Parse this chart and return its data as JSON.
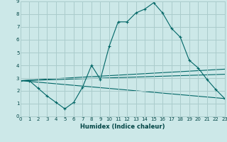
{
  "xlabel": "Humidex (Indice chaleur)",
  "bg_color": "#cce8e8",
  "grid_color": "#aacccc",
  "line_color": "#006666",
  "xlim": [
    0,
    23
  ],
  "ylim": [
    0,
    9
  ],
  "xticks": [
    0,
    1,
    2,
    3,
    4,
    5,
    6,
    7,
    8,
    9,
    10,
    11,
    12,
    13,
    14,
    15,
    16,
    17,
    18,
    19,
    20,
    21,
    22,
    23
  ],
  "yticks": [
    0,
    1,
    2,
    3,
    4,
    5,
    6,
    7,
    8,
    9
  ],
  "line1_x": [
    0,
    1,
    2,
    3,
    4,
    5,
    6,
    7,
    8,
    9,
    10,
    11,
    12,
    13,
    14,
    15,
    16,
    17,
    18,
    19,
    20,
    21,
    22,
    23
  ],
  "line1_y": [
    2.8,
    2.8,
    2.2,
    1.6,
    1.1,
    0.6,
    1.1,
    2.3,
    4.0,
    2.9,
    5.5,
    7.4,
    7.4,
    8.1,
    8.4,
    8.9,
    8.1,
    6.9,
    6.2,
    4.4,
    3.8,
    2.9,
    2.1,
    1.4
  ],
  "line2_x": [
    0,
    23
  ],
  "line2_y": [
    2.8,
    1.4
  ],
  "line3_x": [
    0,
    23
  ],
  "line3_y": [
    2.8,
    3.3
  ],
  "line4_x": [
    0,
    23
  ],
  "line4_y": [
    2.8,
    3.7
  ]
}
